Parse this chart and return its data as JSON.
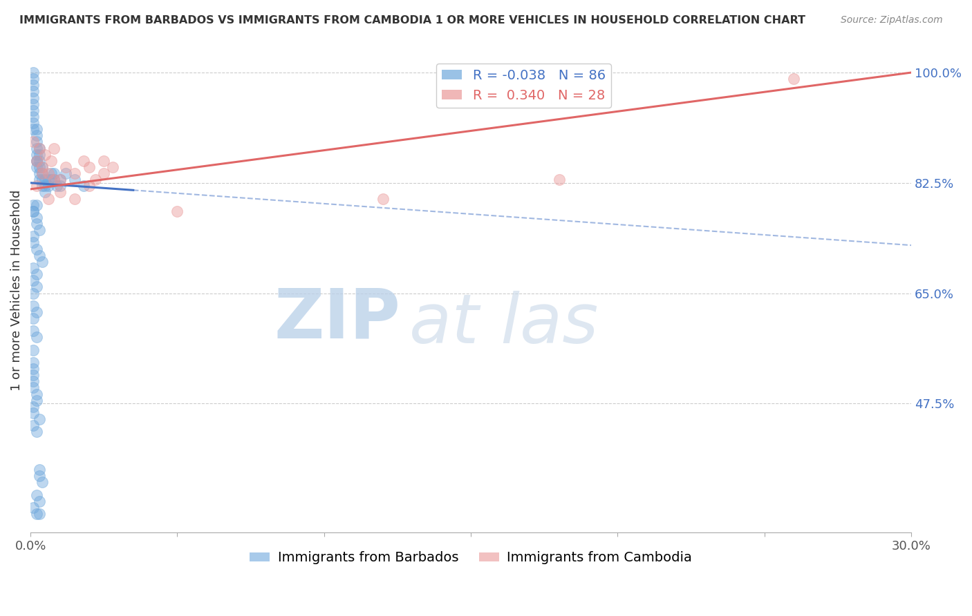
{
  "title": "IMMIGRANTS FROM BARBADOS VS IMMIGRANTS FROM CAMBODIA 1 OR MORE VEHICLES IN HOUSEHOLD CORRELATION CHART",
  "source": "Source: ZipAtlas.com",
  "ylabel": "1 or more Vehicles in Household",
  "xlim": [
    0.0,
    0.3
  ],
  "ylim": [
    0.27,
    1.04
  ],
  "xtick_positions": [
    0.0,
    0.05,
    0.1,
    0.15,
    0.2,
    0.25,
    0.3
  ],
  "xticklabels": [
    "0.0%",
    "",
    "",
    "",
    "",
    "",
    "30.0%"
  ],
  "yticks_right": [
    1.0,
    0.825,
    0.65,
    0.475
  ],
  "ytick_labels_right": [
    "100.0%",
    "82.5%",
    "65.0%",
    "47.5%"
  ],
  "barbados_color": "#6fa8dc",
  "cambodia_color": "#ea9999",
  "barbados_line_color": "#4472c4",
  "cambodia_line_color": "#e06666",
  "barbados_R": -0.038,
  "barbados_N": 86,
  "cambodia_R": 0.34,
  "cambodia_N": 28,
  "legend_label_barbados": "Immigrants from Barbados",
  "legend_label_cambodia": "Immigrants from Cambodia",
  "watermark_zip": "ZIP",
  "watermark_atlas": "at las",
  "background_color": "#ffffff",
  "title_fontsize": 11.5,
  "source_fontsize": 10,
  "axis_label_fontsize": 13,
  "tick_fontsize": 13,
  "legend_fontsize": 14,
  "scatter_size": 130,
  "scatter_alpha": 0.45,
  "grid_color": "#cccccc",
  "axis_color": "#aaaaaa",
  "text_color": "#333333",
  "right_tick_color": "#4472c4",
  "barbados_line_y0": 0.825,
  "barbados_line_y1": 0.726,
  "cambodia_line_y0": 0.815,
  "cambodia_line_y1": 1.0,
  "barbados_x": [
    0.001,
    0.001,
    0.001,
    0.001,
    0.001,
    0.001,
    0.001,
    0.001,
    0.001,
    0.001,
    0.002,
    0.002,
    0.002,
    0.002,
    0.002,
    0.002,
    0.002,
    0.002,
    0.003,
    0.003,
    0.003,
    0.003,
    0.003,
    0.003,
    0.004,
    0.004,
    0.004,
    0.004,
    0.005,
    0.005,
    0.005,
    0.006,
    0.006,
    0.007,
    0.007,
    0.008,
    0.008,
    0.009,
    0.01,
    0.01,
    0.012,
    0.015,
    0.018,
    0.002,
    0.001,
    0.001,
    0.001,
    0.002,
    0.002,
    0.003,
    0.001,
    0.001,
    0.002,
    0.003,
    0.004,
    0.001,
    0.002,
    0.001,
    0.002,
    0.001,
    0.001,
    0.002,
    0.001,
    0.001,
    0.002,
    0.001,
    0.001,
    0.001,
    0.001,
    0.001,
    0.001,
    0.002,
    0.002,
    0.001,
    0.001,
    0.003,
    0.001,
    0.002,
    0.003,
    0.003,
    0.004,
    0.002,
    0.003,
    0.001,
    0.002,
    0.003
  ],
  "barbados_y": [
    1.0,
    0.99,
    0.98,
    0.97,
    0.96,
    0.95,
    0.94,
    0.93,
    0.92,
    0.91,
    0.91,
    0.9,
    0.89,
    0.88,
    0.87,
    0.86,
    0.86,
    0.85,
    0.88,
    0.87,
    0.86,
    0.85,
    0.84,
    0.83,
    0.85,
    0.84,
    0.83,
    0.82,
    0.83,
    0.82,
    0.81,
    0.83,
    0.82,
    0.84,
    0.83,
    0.84,
    0.83,
    0.82,
    0.83,
    0.82,
    0.84,
    0.83,
    0.82,
    0.79,
    0.79,
    0.78,
    0.78,
    0.77,
    0.76,
    0.75,
    0.74,
    0.73,
    0.72,
    0.71,
    0.7,
    0.69,
    0.68,
    0.67,
    0.66,
    0.65,
    0.63,
    0.62,
    0.61,
    0.59,
    0.58,
    0.56,
    0.54,
    0.53,
    0.52,
    0.51,
    0.5,
    0.49,
    0.48,
    0.47,
    0.46,
    0.45,
    0.44,
    0.43,
    0.37,
    0.36,
    0.35,
    0.33,
    0.32,
    0.31,
    0.3,
    0.3
  ],
  "cambodia_x": [
    0.001,
    0.002,
    0.003,
    0.004,
    0.005,
    0.006,
    0.007,
    0.008,
    0.01,
    0.012,
    0.015,
    0.018,
    0.02,
    0.022,
    0.025,
    0.028,
    0.002,
    0.004,
    0.006,
    0.008,
    0.01,
    0.015,
    0.02,
    0.025,
    0.05,
    0.12,
    0.18,
    0.26
  ],
  "cambodia_y": [
    0.89,
    0.86,
    0.88,
    0.85,
    0.87,
    0.84,
    0.86,
    0.88,
    0.83,
    0.85,
    0.84,
    0.86,
    0.85,
    0.83,
    0.86,
    0.85,
    0.82,
    0.84,
    0.8,
    0.83,
    0.81,
    0.8,
    0.82,
    0.84,
    0.78,
    0.8,
    0.83,
    0.99
  ]
}
